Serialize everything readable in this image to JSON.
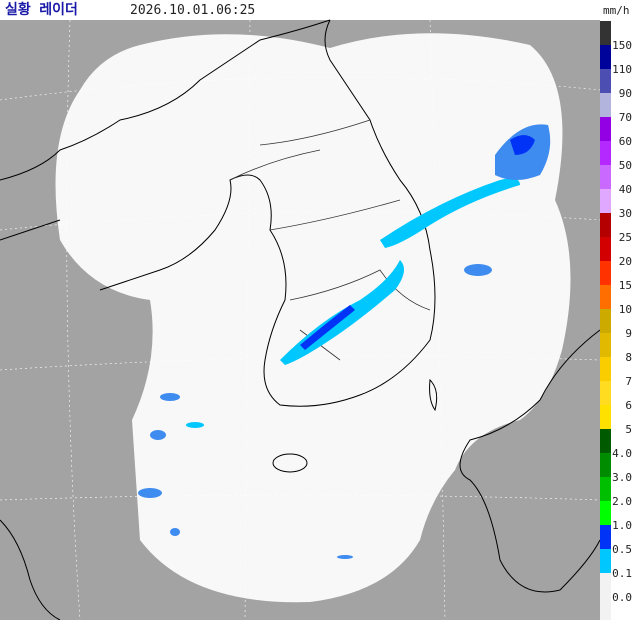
{
  "header": {
    "title": "실황 레이더",
    "timestamp": "2026.10.01.06:25",
    "unit": "mm/h"
  },
  "legend": [
    {
      "label": "150",
      "color": "#333333"
    },
    {
      "label": "110",
      "color": "#00039a"
    },
    {
      "label": "90",
      "color": "#4c4eb1"
    },
    {
      "label": "70",
      "color": "#b3b4de"
    },
    {
      "label": "60",
      "color": "#9300e4"
    },
    {
      "label": "50",
      "color": "#b329ff"
    },
    {
      "label": "40",
      "color": "#c969ff"
    },
    {
      "label": "30",
      "color": "#e0a9ff"
    },
    {
      "label": "25",
      "color": "#b40000"
    },
    {
      "label": "20",
      "color": "#d20000"
    },
    {
      "label": "15",
      "color": "#ff3200"
    },
    {
      "label": "10",
      "color": "#ff6e00"
    },
    {
      "label": "9",
      "color": "#ccaa00"
    },
    {
      "label": "8",
      "color": "#e0b900"
    },
    {
      "label": "7",
      "color": "#f9cd00"
    },
    {
      "label": "6",
      "color": "#ffdc1f"
    },
    {
      "label": "5",
      "color": "#ffe100"
    },
    {
      "label": "4.0",
      "color": "#005a00"
    },
    {
      "label": "3.0",
      "color": "#008c00"
    },
    {
      "label": "2.0",
      "color": "#00be00"
    },
    {
      "label": "1.0",
      "color": "#00ff00"
    },
    {
      "label": "0.5",
      "color": "#0033f5"
    },
    {
      "label": "0.1",
      "color": "#00c8ff"
    },
    {
      "label": "0.0",
      "color": "#f2f2f2"
    }
  ]
}
